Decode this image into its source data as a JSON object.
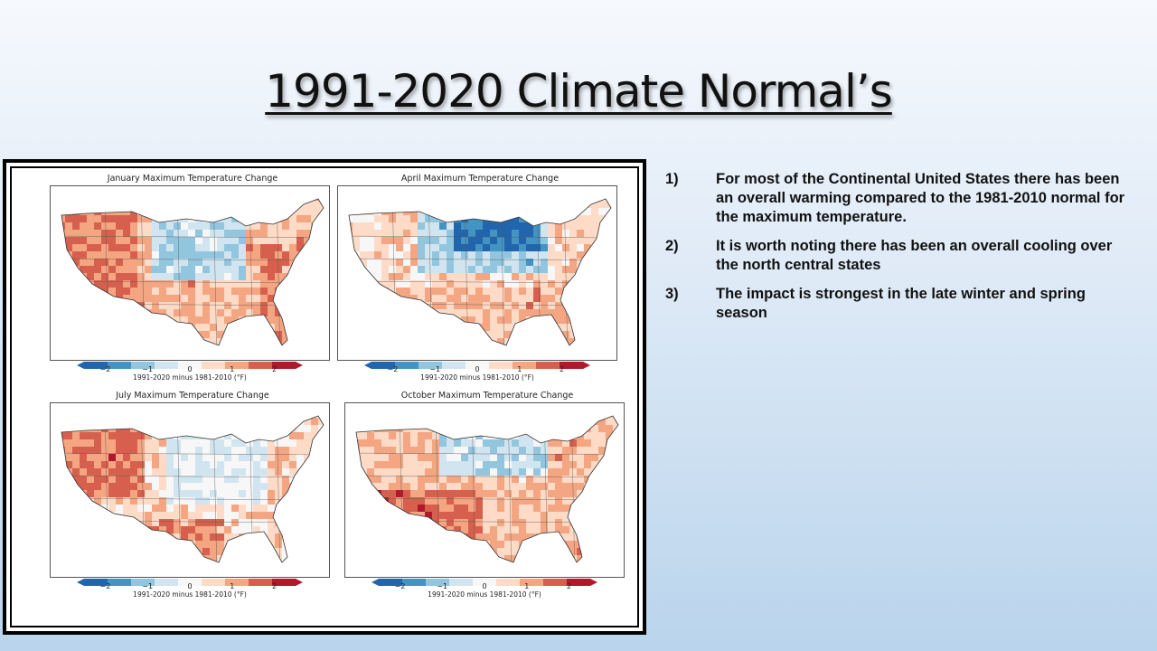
{
  "slide": {
    "title": "1991-2020 Climate Normal’s"
  },
  "colorbar": {
    "ticks": [
      "−2",
      "−1",
      "0",
      "1",
      "2"
    ],
    "tick_values": [
      -2,
      -1,
      0,
      1,
      2
    ],
    "range": [
      -2.5,
      2.5
    ],
    "caption": "1991-2020 minus 1981-2010 (°F)",
    "colors": [
      "#2166ac",
      "#4393c3",
      "#92c5de",
      "#d1e5f0",
      "#f7f7f7",
      "#fddbc7",
      "#f4a582",
      "#d6604d",
      "#b2182b"
    ]
  },
  "panels": [
    {
      "title": "January Maximum Temperature Change",
      "pattern": "jan"
    },
    {
      "title": "April Maximum Temperature Change",
      "pattern": "apr"
    },
    {
      "title": "July Maximum Temperature Change",
      "pattern": "jul"
    },
    {
      "title": "October Maximum Temperature Change",
      "pattern": "oct"
    }
  ],
  "notes": [
    {
      "number": "1)",
      "text": "For most of the Continental United States there has been an overall warming compared to the 1981-2010 normal for the maximum temperature."
    },
    {
      "number": "2)",
      "text": "It is worth noting there has been an overall cooling over the north central states"
    },
    {
      "number": "3)",
      "text": "The impact is strongest in the late winter and spring season"
    }
  ]
}
